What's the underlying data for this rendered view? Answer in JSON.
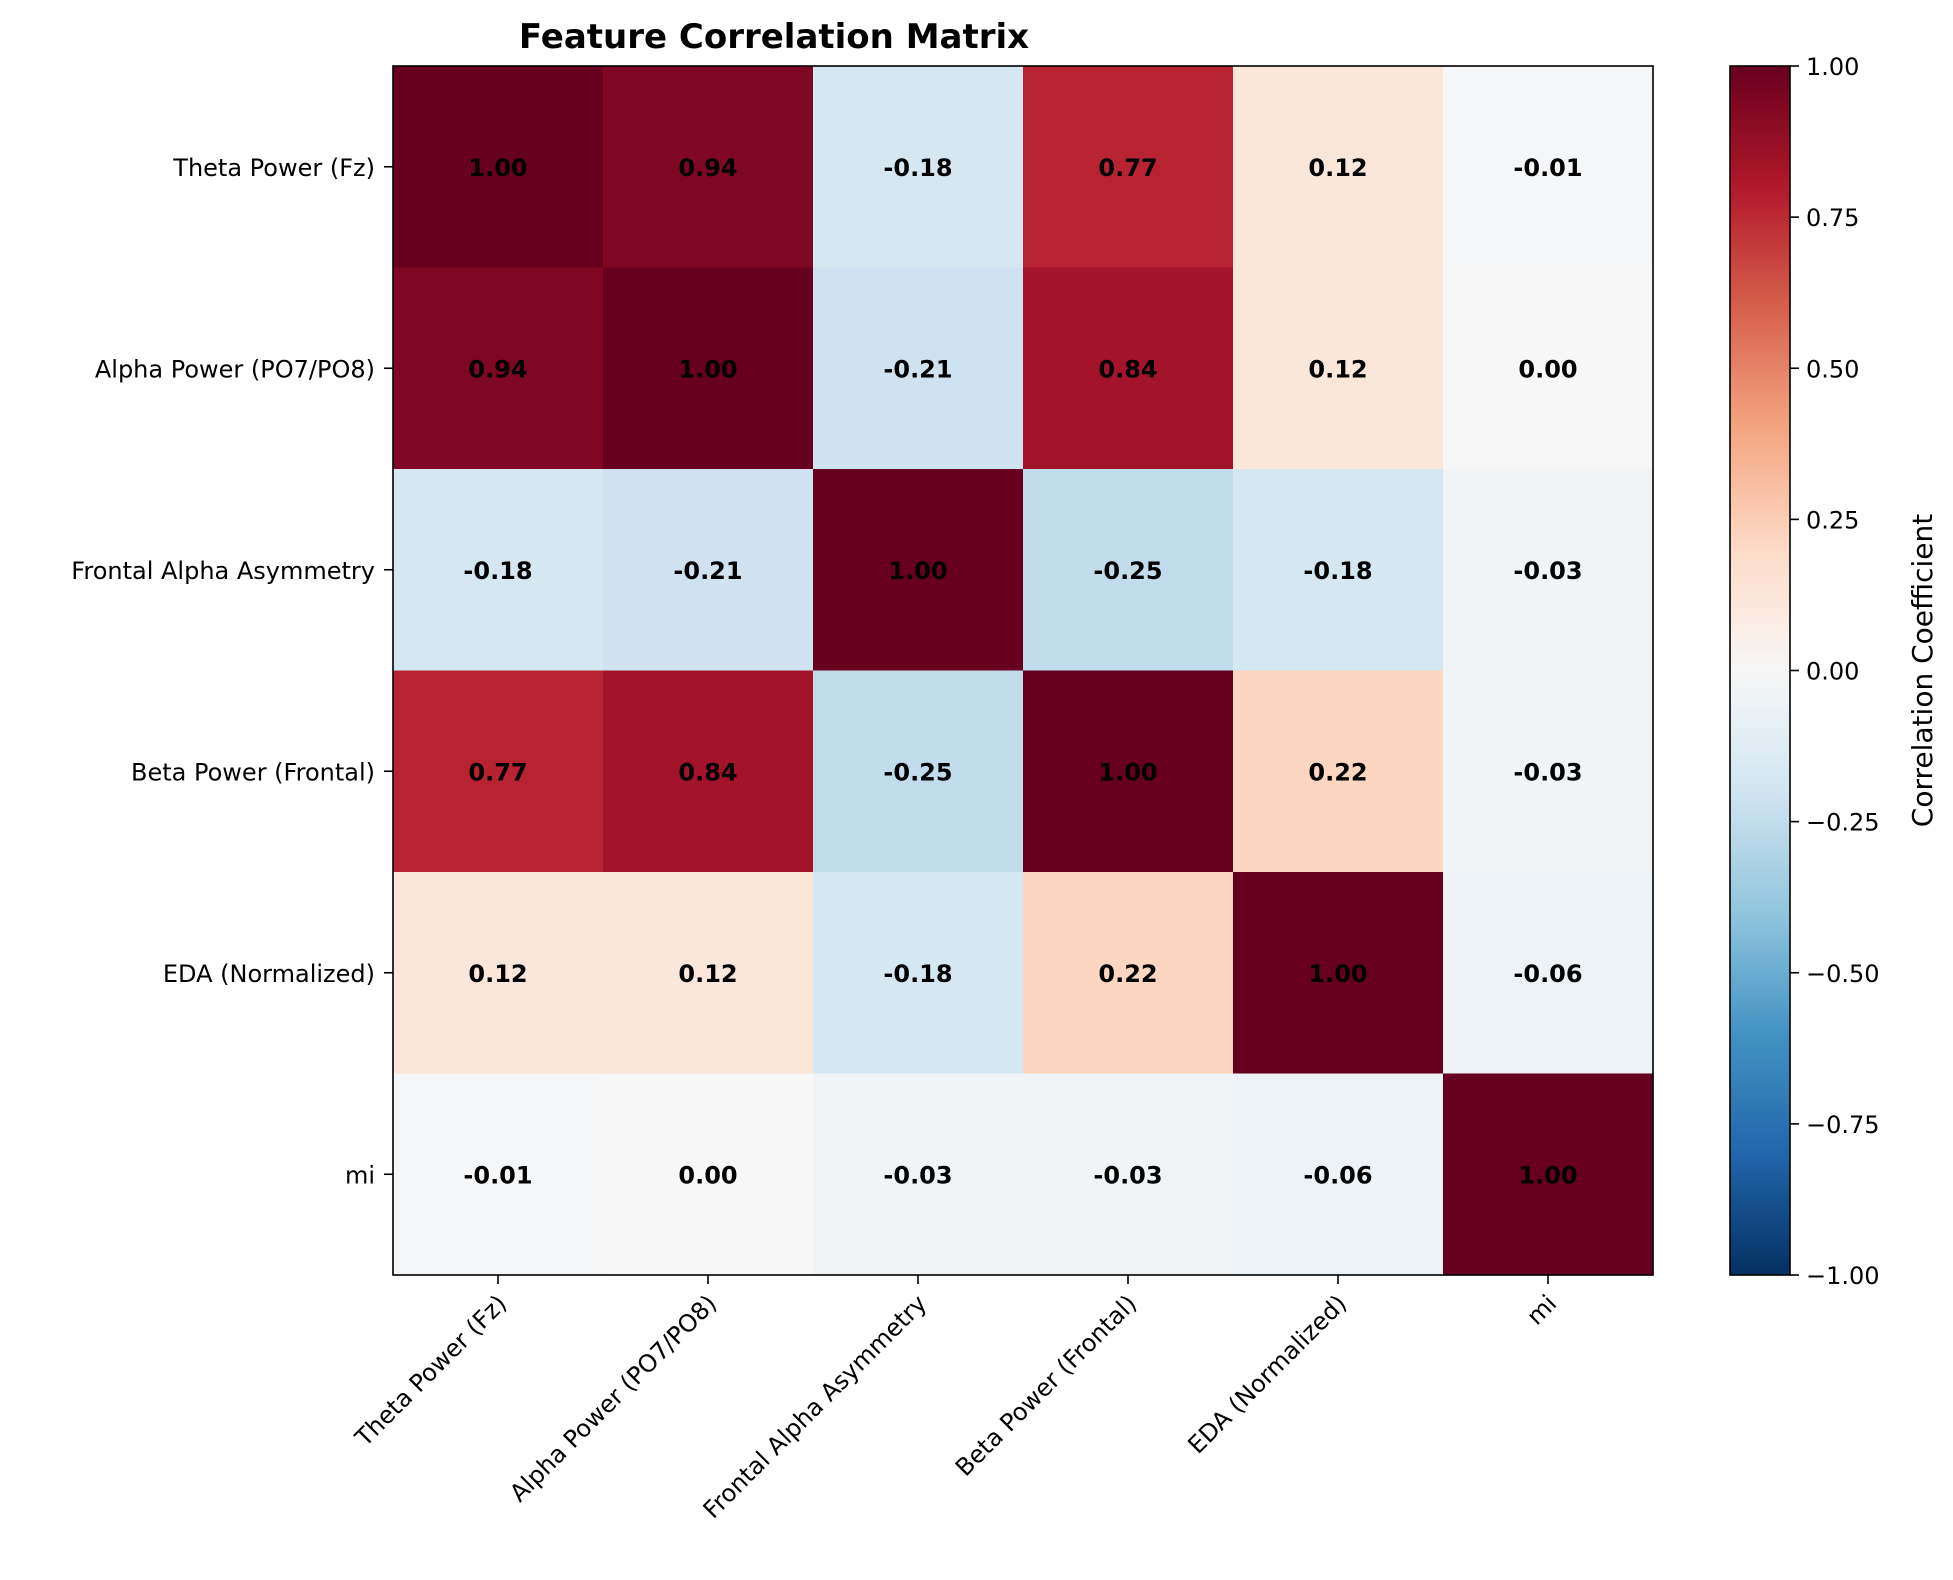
{
  "chart_data": {
    "type": "heatmap",
    "title": "Feature Correlation Matrix",
    "row_labels": [
      "Theta Power (Fz)",
      "Alpha Power (PO7/PO8)",
      "Frontal Alpha Asymmetry",
      "Beta Power (Frontal)",
      "EDA (Normalized)",
      "mi"
    ],
    "col_labels": [
      "Theta Power (Fz)",
      "Alpha Power (PO7/PO8)",
      "Frontal Alpha Asymmetry",
      "Beta Power (Frontal)",
      "EDA (Normalized)",
      "mi"
    ],
    "values": [
      [
        1.0,
        0.94,
        -0.18,
        0.77,
        0.12,
        -0.01
      ],
      [
        0.94,
        1.0,
        -0.21,
        0.84,
        0.12,
        0.0
      ],
      [
        -0.18,
        -0.21,
        1.0,
        -0.25,
        -0.18,
        -0.03
      ],
      [
        0.77,
        0.84,
        -0.25,
        1.0,
        0.22,
        -0.03
      ],
      [
        0.12,
        0.12,
        -0.18,
        0.22,
        1.0,
        -0.06
      ],
      [
        -0.01,
        0.0,
        -0.03,
        -0.03,
        -0.06,
        1.0
      ]
    ],
    "value_labels": [
      [
        "1.00",
        "0.94",
        "-0.18",
        "0.77",
        "0.12",
        "-0.01"
      ],
      [
        "0.94",
        "1.00",
        "-0.21",
        "0.84",
        "0.12",
        "0.00"
      ],
      [
        "-0.18",
        "-0.21",
        "1.00",
        "-0.25",
        "-0.18",
        "-0.03"
      ],
      [
        "0.77",
        "0.84",
        "-0.25",
        "1.00",
        "0.22",
        "-0.03"
      ],
      [
        "0.12",
        "0.12",
        "-0.18",
        "0.22",
        "1.00",
        "-0.06"
      ],
      [
        "-0.01",
        "0.00",
        "-0.03",
        "-0.03",
        "-0.06",
        "1.00"
      ]
    ],
    "colormap": "RdBu_r",
    "vmin": -1.0,
    "vmax": 1.0,
    "colorbar": {
      "label": "Correlation Coefficient",
      "ticks": [
        1.0,
        0.75,
        0.5,
        0.25,
        0.0,
        -0.25,
        -0.5,
        -0.75,
        -1.0
      ],
      "tick_labels": [
        "1.00",
        "0.75",
        "0.50",
        "0.25",
        "0.00",
        "−0.25",
        "−0.50",
        "−0.75",
        "−1.00"
      ]
    },
    "grid": false,
    "colors": {
      "colormap_stops": [
        "#053061",
        "#2166ac",
        "#4393c3",
        "#92c5de",
        "#d1e5f0",
        "#f7f7f7",
        "#fddbc7",
        "#f4a582",
        "#d6604d",
        "#b2182b",
        "#67001f"
      ]
    }
  }
}
